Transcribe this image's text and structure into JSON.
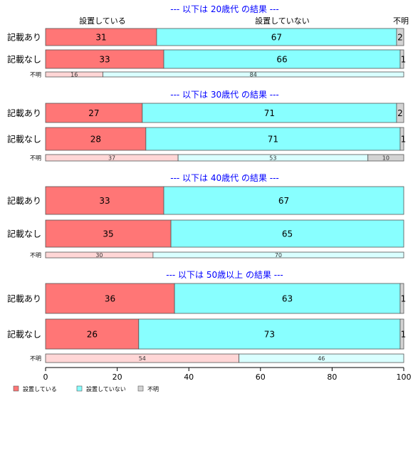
{
  "chart_data": {
    "type": "bar",
    "orientation": "horizontal",
    "stacked": true,
    "xlim": [
      0,
      100
    ],
    "x_ticks": [
      0,
      20,
      40,
      60,
      80,
      100
    ],
    "column_headers": [
      "設置している",
      "設置していない",
      "不明"
    ],
    "legend": {
      "placement": "bottom-left",
      "entries": [
        {
          "name": "設置している",
          "color": "#ff7676"
        },
        {
          "name": "設置していない",
          "color": "#88ffff"
        },
        {
          "name": "不明",
          "color": "#d3d3d3"
        }
      ]
    },
    "panels": [
      {
        "title": "--- 以下は 20歳代 の結果 ---",
        "rows": [
          {
            "label": "記載あり",
            "values": [
              31,
              67,
              2
            ],
            "labels": [
              "31",
              "67",
              "2"
            ],
            "small": false
          },
          {
            "label": "記載なし",
            "values": [
              33,
              66,
              1
            ],
            "labels": [
              "33",
              "66",
              "1"
            ],
            "small": false
          },
          {
            "label": "不明",
            "values": [
              16,
              84,
              0
            ],
            "labels": [
              "16",
              "84",
              ""
            ],
            "small": true
          }
        ]
      },
      {
        "title": "--- 以下は 30歳代 の結果 ---",
        "rows": [
          {
            "label": "記載あり",
            "values": [
              27,
              71,
              2
            ],
            "labels": [
              "27",
              "71",
              "2"
            ],
            "small": false
          },
          {
            "label": "記載なし",
            "values": [
              28,
              71,
              1
            ],
            "labels": [
              "28",
              "71",
              "1"
            ],
            "small": false
          },
          {
            "label": "不明",
            "values": [
              37,
              53,
              10
            ],
            "labels": [
              "37",
              "53",
              "10"
            ],
            "small": true
          }
        ]
      },
      {
        "title": "--- 以下は 40歳代 の結果 ---",
        "rows": [
          {
            "label": "記載あり",
            "values": [
              33,
              67,
              0
            ],
            "labels": [
              "33",
              "67",
              ""
            ],
            "small": false
          },
          {
            "label": "記載なし",
            "values": [
              35,
              65,
              0
            ],
            "labels": [
              "35",
              "65",
              ""
            ],
            "small": false
          },
          {
            "label": "不明",
            "values": [
              30,
              70,
              0
            ],
            "labels": [
              "30",
              "70",
              ""
            ],
            "small": true
          }
        ]
      },
      {
        "title": "--- 以下は 50歳以上 の結果 ---",
        "rows": [
          {
            "label": "記載あり",
            "values": [
              36,
              63,
              1
            ],
            "labels": [
              "36",
              "63",
              "1"
            ],
            "small": false
          },
          {
            "label": "記載なし",
            "values": [
              26,
              73,
              1
            ],
            "labels": [
              "26",
              "73",
              "1"
            ],
            "small": false
          },
          {
            "label": "不明",
            "values": [
              54,
              46,
              0
            ],
            "labels": [
              "54",
              "46",
              ""
            ],
            "small": true
          }
        ]
      }
    ]
  }
}
